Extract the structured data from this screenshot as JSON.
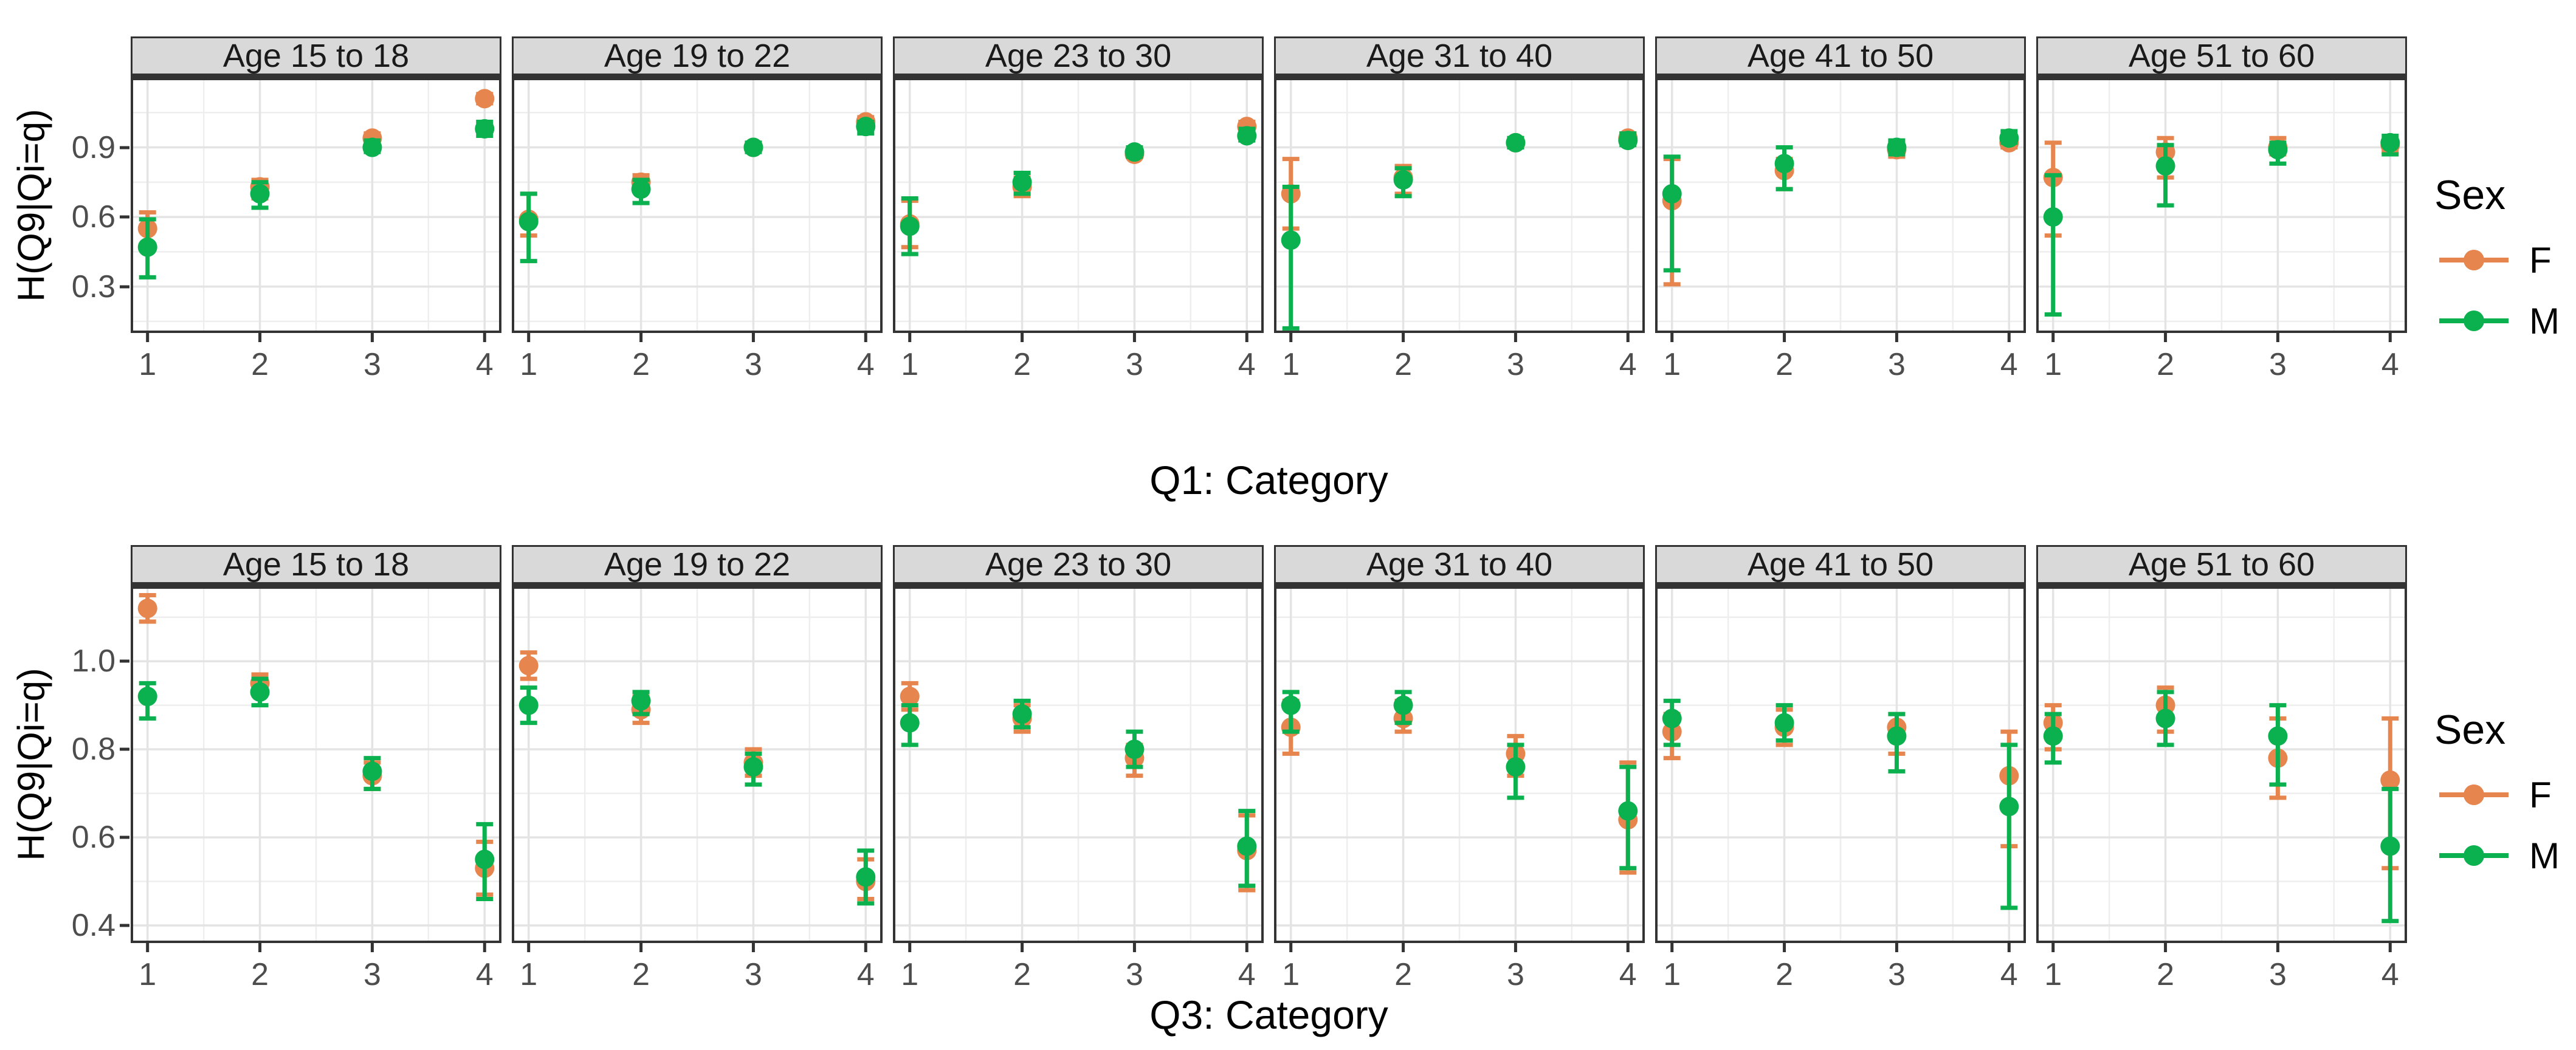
{
  "legend": {
    "title": "Sex",
    "entries": [
      {
        "label": "F",
        "color": "#E6854D"
      },
      {
        "label": "M",
        "color": "#0CB14F"
      }
    ]
  },
  "style_colors": {
    "strip_background": "#d9d9d9",
    "panel_border": "#333333",
    "grid_major": "#e4e4e4",
    "grid_minor": "#eeeeee",
    "tick_text": "#4d4d4d"
  },
  "chart_data": [
    {
      "type": "scatter",
      "subtype": "pointrange-errorbar",
      "xlabel": "Q1: Category",
      "ylabel": "H(Q9|Qi=q)",
      "x": [
        1,
        2,
        3,
        4
      ],
      "xlim": [
        0.85,
        4.15
      ],
      "ylim": [
        0.1,
        1.2
      ],
      "yticks": [
        0.3,
        0.6,
        0.9
      ],
      "ytick_labels": [
        "0.3",
        "0.6",
        "0.9"
      ],
      "yminor": [
        0.15,
        0.45,
        0.75,
        1.05
      ],
      "xminor": [
        1.5,
        2.5,
        3.5
      ],
      "grid": true,
      "legend_position": "right",
      "facets": [
        {
          "label": "Age 15 to 18",
          "series": [
            {
              "name": "F",
              "y": [
                0.55,
                0.73,
                0.94,
                1.11
              ],
              "lo": [
                0.47,
                0.68,
                0.92,
                1.09
              ],
              "hi": [
                0.62,
                0.76,
                0.96,
                1.13
              ]
            },
            {
              "name": "M",
              "y": [
                0.47,
                0.7,
                0.9,
                0.98
              ],
              "lo": [
                0.34,
                0.64,
                0.88,
                0.95
              ],
              "hi": [
                0.59,
                0.75,
                0.93,
                1.01
              ]
            }
          ]
        },
        {
          "label": "Age 19 to 22",
          "series": [
            {
              "name": "F",
              "y": [
                0.59,
                0.75,
                0.9,
                1.01
              ],
              "lo": [
                0.52,
                0.72,
                0.89,
                0.99
              ],
              "hi": [
                0.7,
                0.78,
                0.92,
                1.03
              ]
            },
            {
              "name": "M",
              "y": [
                0.58,
                0.72,
                0.9,
                0.99
              ],
              "lo": [
                0.41,
                0.66,
                0.88,
                0.96
              ],
              "hi": [
                0.7,
                0.76,
                0.92,
                1.01
              ]
            }
          ]
        },
        {
          "label": "Age 23 to 30",
          "series": [
            {
              "name": "F",
              "y": [
                0.57,
                0.73,
                0.87,
                0.99
              ],
              "lo": [
                0.47,
                0.69,
                0.86,
                0.97
              ],
              "hi": [
                0.67,
                0.77,
                0.89,
                1.01
              ]
            },
            {
              "name": "M",
              "y": [
                0.56,
                0.75,
                0.88,
                0.95
              ],
              "lo": [
                0.44,
                0.7,
                0.86,
                0.93
              ],
              "hi": [
                0.68,
                0.79,
                0.9,
                0.98
              ]
            }
          ]
        },
        {
          "label": "Age 31 to 40",
          "series": [
            {
              "name": "F",
              "y": [
                0.7,
                0.77,
                0.92,
                0.94
              ],
              "lo": [
                0.55,
                0.7,
                0.9,
                0.92
              ],
              "hi": [
                0.85,
                0.82,
                0.94,
                0.96
              ]
            },
            {
              "name": "M",
              "y": [
                0.5,
                0.76,
                0.92,
                0.93
              ],
              "lo": [
                0.12,
                0.69,
                0.9,
                0.91
              ],
              "hi": [
                0.73,
                0.81,
                0.94,
                0.96
              ]
            }
          ]
        },
        {
          "label": "Age 41 to 50",
          "series": [
            {
              "name": "F",
              "y": [
                0.67,
                0.8,
                0.89,
                0.92
              ],
              "lo": [
                0.31,
                0.72,
                0.86,
                0.9
              ],
              "hi": [
                0.85,
                0.85,
                0.92,
                0.95
              ]
            },
            {
              "name": "M",
              "y": [
                0.7,
                0.83,
                0.9,
                0.94
              ],
              "lo": [
                0.37,
                0.72,
                0.87,
                0.92
              ],
              "hi": [
                0.86,
                0.9,
                0.93,
                0.97
              ]
            }
          ]
        },
        {
          "label": "Age 51 to 60",
          "series": [
            {
              "name": "F",
              "y": [
                0.77,
                0.88,
                0.9,
                0.91
              ],
              "lo": [
                0.52,
                0.77,
                0.87,
                0.88
              ],
              "hi": [
                0.92,
                0.94,
                0.94,
                0.93
              ]
            },
            {
              "name": "M",
              "y": [
                0.6,
                0.82,
                0.89,
                0.92
              ],
              "lo": [
                0.18,
                0.65,
                0.83,
                0.87
              ],
              "hi": [
                0.78,
                0.91,
                0.92,
                0.95
              ]
            }
          ]
        }
      ]
    },
    {
      "type": "scatter",
      "subtype": "pointrange-errorbar",
      "xlabel": "Q3: Category",
      "ylabel": "H(Q9|Qi=q)",
      "x": [
        1,
        2,
        3,
        4
      ],
      "xlim": [
        0.85,
        4.15
      ],
      "ylim": [
        0.36,
        1.17
      ],
      "yticks": [
        0.4,
        0.6,
        0.8,
        1.0
      ],
      "ytick_labels": [
        "0.4",
        "0.6",
        "0.8",
        "1.0"
      ],
      "yminor": [
        0.5,
        0.7,
        0.9,
        1.1
      ],
      "xminor": [
        1.5,
        2.5,
        3.5
      ],
      "grid": true,
      "legend_position": "right",
      "facets": [
        {
          "label": "Age 15 to 18",
          "series": [
            {
              "name": "F",
              "y": [
                1.12,
                0.95,
                0.74,
                0.53
              ],
              "lo": [
                1.09,
                0.93,
                0.71,
                0.47
              ],
              "hi": [
                1.15,
                0.97,
                0.77,
                0.59
              ]
            },
            {
              "name": "M",
              "y": [
                0.92,
                0.93,
                0.75,
                0.55
              ],
              "lo": [
                0.87,
                0.9,
                0.71,
                0.46
              ],
              "hi": [
                0.95,
                0.96,
                0.78,
                0.63
              ]
            }
          ]
        },
        {
          "label": "Age 19 to 22",
          "series": [
            {
              "name": "F",
              "y": [
                0.99,
                0.89,
                0.77,
                0.5
              ],
              "lo": [
                0.96,
                0.86,
                0.74,
                0.46
              ],
              "hi": [
                1.02,
                0.92,
                0.8,
                0.55
              ]
            },
            {
              "name": "M",
              "y": [
                0.9,
                0.91,
                0.76,
                0.51
              ],
              "lo": [
                0.86,
                0.88,
                0.72,
                0.45
              ],
              "hi": [
                0.94,
                0.93,
                0.79,
                0.57
              ]
            }
          ]
        },
        {
          "label": "Age 23 to 30",
          "series": [
            {
              "name": "F",
              "y": [
                0.92,
                0.87,
                0.78,
                0.57
              ],
              "lo": [
                0.89,
                0.84,
                0.74,
                0.48
              ],
              "hi": [
                0.95,
                0.9,
                0.81,
                0.65
              ]
            },
            {
              "name": "M",
              "y": [
                0.86,
                0.88,
                0.8,
                0.58
              ],
              "lo": [
                0.81,
                0.85,
                0.76,
                0.49
              ],
              "hi": [
                0.9,
                0.91,
                0.84,
                0.66
              ]
            }
          ]
        },
        {
          "label": "Age 31 to 40",
          "series": [
            {
              "name": "F",
              "y": [
                0.85,
                0.87,
                0.79,
                0.64
              ],
              "lo": [
                0.79,
                0.84,
                0.74,
                0.52
              ],
              "hi": [
                0.91,
                0.91,
                0.83,
                0.77
              ]
            },
            {
              "name": "M",
              "y": [
                0.9,
                0.9,
                0.76,
                0.66
              ],
              "lo": [
                0.84,
                0.86,
                0.69,
                0.53
              ],
              "hi": [
                0.93,
                0.93,
                0.81,
                0.76
              ]
            }
          ]
        },
        {
          "label": "Age 41 to 50",
          "series": [
            {
              "name": "F",
              "y": [
                0.84,
                0.85,
                0.85,
                0.74
              ],
              "lo": [
                0.78,
                0.81,
                0.79,
                0.58
              ],
              "hi": [
                0.88,
                0.89,
                0.88,
                0.84
              ]
            },
            {
              "name": "M",
              "y": [
                0.87,
                0.86,
                0.83,
                0.67
              ],
              "lo": [
                0.81,
                0.82,
                0.75,
                0.44
              ],
              "hi": [
                0.91,
                0.9,
                0.88,
                0.81
              ]
            }
          ]
        },
        {
          "label": "Age 51 to 60",
          "series": [
            {
              "name": "F",
              "y": [
                0.86,
                0.9,
                0.78,
                0.73
              ],
              "lo": [
                0.8,
                0.84,
                0.69,
                0.53
              ],
              "hi": [
                0.9,
                0.94,
                0.87,
                0.87
              ]
            },
            {
              "name": "M",
              "y": [
                0.83,
                0.87,
                0.83,
                0.58
              ],
              "lo": [
                0.77,
                0.81,
                0.72,
                0.41
              ],
              "hi": [
                0.88,
                0.93,
                0.9,
                0.71
              ]
            }
          ]
        }
      ]
    }
  ]
}
